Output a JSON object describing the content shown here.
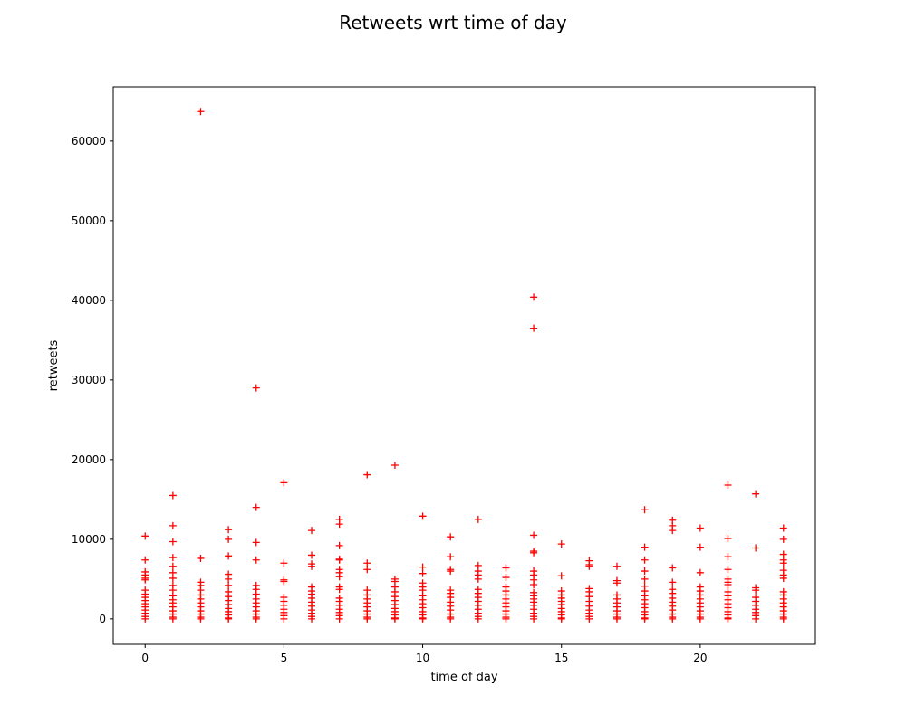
{
  "chart_data": {
    "type": "scatter",
    "title": "Retweets wrt time of day",
    "xlabel": "time of day",
    "ylabel": "retweets",
    "xlim": [
      -1.15,
      24.15
    ],
    "ylim": [
      -3200,
      66800
    ],
    "xticks": [
      0,
      5,
      10,
      15,
      20
    ],
    "yticks": [
      0,
      10000,
      20000,
      30000,
      40000,
      50000,
      60000
    ],
    "grid": false,
    "marker": "+",
    "color": "#ff0000",
    "series": [
      {
        "points": [
          [
            0,
            10400
          ],
          [
            0,
            7400
          ],
          [
            0,
            5900
          ],
          [
            0,
            5500
          ],
          [
            0,
            5100
          ],
          [
            0,
            4900
          ],
          [
            0,
            3600
          ],
          [
            0,
            3100
          ],
          [
            0,
            2700
          ],
          [
            0,
            2300
          ],
          [
            0,
            1900
          ],
          [
            0,
            1500
          ],
          [
            0,
            1100
          ],
          [
            0,
            700
          ],
          [
            0,
            300
          ],
          [
            0,
            0
          ],
          [
            1,
            15500
          ],
          [
            1,
            11700
          ],
          [
            1,
            9700
          ],
          [
            1,
            7700
          ],
          [
            1,
            6600
          ],
          [
            1,
            5800
          ],
          [
            1,
            5100
          ],
          [
            1,
            4200
          ],
          [
            1,
            3600
          ],
          [
            1,
            2900
          ],
          [
            1,
            2400
          ],
          [
            1,
            2000
          ],
          [
            1,
            1500
          ],
          [
            1,
            1000
          ],
          [
            1,
            600
          ],
          [
            1,
            200
          ],
          [
            1,
            0
          ],
          [
            2,
            63700
          ],
          [
            2,
            7600
          ],
          [
            2,
            4600
          ],
          [
            2,
            4200
          ],
          [
            2,
            3600
          ],
          [
            2,
            3000
          ],
          [
            2,
            2500
          ],
          [
            2,
            2000
          ],
          [
            2,
            1500
          ],
          [
            2,
            1000
          ],
          [
            2,
            600
          ],
          [
            2,
            200
          ],
          [
            2,
            0
          ],
          [
            3,
            11200
          ],
          [
            3,
            10000
          ],
          [
            3,
            7900
          ],
          [
            3,
            5600
          ],
          [
            3,
            5000
          ],
          [
            3,
            4200
          ],
          [
            3,
            3400
          ],
          [
            3,
            2800
          ],
          [
            3,
            2300
          ],
          [
            3,
            1800
          ],
          [
            3,
            1300
          ],
          [
            3,
            900
          ],
          [
            3,
            500
          ],
          [
            3,
            100
          ],
          [
            3,
            0
          ],
          [
            4,
            29000
          ],
          [
            4,
            14000
          ],
          [
            4,
            9600
          ],
          [
            4,
            7400
          ],
          [
            4,
            4200
          ],
          [
            4,
            3700
          ],
          [
            4,
            3100
          ],
          [
            4,
            2500
          ],
          [
            4,
            2000
          ],
          [
            4,
            1500
          ],
          [
            4,
            1000
          ],
          [
            4,
            600
          ],
          [
            4,
            200
          ],
          [
            4,
            0
          ],
          [
            5,
            17100
          ],
          [
            5,
            7000
          ],
          [
            5,
            4900
          ],
          [
            5,
            4700
          ],
          [
            5,
            2700
          ],
          [
            5,
            2200
          ],
          [
            5,
            1700
          ],
          [
            5,
            1200
          ],
          [
            5,
            800
          ],
          [
            5,
            400
          ],
          [
            5,
            0
          ],
          [
            6,
            11100
          ],
          [
            6,
            8000
          ],
          [
            6,
            6900
          ],
          [
            6,
            6600
          ],
          [
            6,
            4000
          ],
          [
            6,
            3500
          ],
          [
            6,
            3100
          ],
          [
            6,
            2600
          ],
          [
            6,
            2100
          ],
          [
            6,
            1600
          ],
          [
            6,
            1100
          ],
          [
            6,
            700
          ],
          [
            6,
            300
          ],
          [
            6,
            0
          ],
          [
            7,
            12500
          ],
          [
            7,
            11900
          ],
          [
            7,
            9200
          ],
          [
            7,
            7500
          ],
          [
            7,
            7400
          ],
          [
            7,
            6200
          ],
          [
            7,
            5800
          ],
          [
            7,
            5300
          ],
          [
            7,
            4000
          ],
          [
            7,
            3700
          ],
          [
            7,
            2600
          ],
          [
            7,
            2200
          ],
          [
            7,
            1700
          ],
          [
            7,
            1200
          ],
          [
            7,
            800
          ],
          [
            7,
            400
          ],
          [
            7,
            0
          ],
          [
            8,
            18100
          ],
          [
            8,
            7000
          ],
          [
            8,
            6200
          ],
          [
            8,
            3600
          ],
          [
            8,
            3000
          ],
          [
            8,
            2500
          ],
          [
            8,
            2000
          ],
          [
            8,
            1500
          ],
          [
            8,
            1000
          ],
          [
            8,
            600
          ],
          [
            8,
            200
          ],
          [
            8,
            0
          ],
          [
            9,
            19300
          ],
          [
            9,
            5000
          ],
          [
            9,
            4700
          ],
          [
            9,
            4000
          ],
          [
            9,
            3400
          ],
          [
            9,
            2800
          ],
          [
            9,
            2300
          ],
          [
            9,
            1800
          ],
          [
            9,
            1300
          ],
          [
            9,
            900
          ],
          [
            9,
            500
          ],
          [
            9,
            100
          ],
          [
            9,
            0
          ],
          [
            10,
            12900
          ],
          [
            10,
            6500
          ],
          [
            10,
            5700
          ],
          [
            10,
            4500
          ],
          [
            10,
            4000
          ],
          [
            10,
            3600
          ],
          [
            10,
            2900
          ],
          [
            10,
            2400
          ],
          [
            10,
            1900
          ],
          [
            10,
            1400
          ],
          [
            10,
            900
          ],
          [
            10,
            500
          ],
          [
            10,
            100
          ],
          [
            10,
            0
          ],
          [
            11,
            10300
          ],
          [
            11,
            7800
          ],
          [
            11,
            6200
          ],
          [
            11,
            6000
          ],
          [
            11,
            3600
          ],
          [
            11,
            3200
          ],
          [
            11,
            2700
          ],
          [
            11,
            2100
          ],
          [
            11,
            1600
          ],
          [
            11,
            1100
          ],
          [
            11,
            600
          ],
          [
            11,
            200
          ],
          [
            11,
            0
          ],
          [
            12,
            12500
          ],
          [
            12,
            6700
          ],
          [
            12,
            6000
          ],
          [
            12,
            5500
          ],
          [
            12,
            5000
          ],
          [
            12,
            3700
          ],
          [
            12,
            3200
          ],
          [
            12,
            2700
          ],
          [
            12,
            2200
          ],
          [
            12,
            1700
          ],
          [
            12,
            1200
          ],
          [
            12,
            700
          ],
          [
            12,
            300
          ],
          [
            12,
            0
          ],
          [
            13,
            6400
          ],
          [
            13,
            5200
          ],
          [
            13,
            4000
          ],
          [
            13,
            3500
          ],
          [
            13,
            3000
          ],
          [
            13,
            2500
          ],
          [
            13,
            2000
          ],
          [
            13,
            1500
          ],
          [
            13,
            1000
          ],
          [
            13,
            600
          ],
          [
            13,
            200
          ],
          [
            13,
            0
          ],
          [
            14,
            40400
          ],
          [
            14,
            36500
          ],
          [
            14,
            10500
          ],
          [
            14,
            8500
          ],
          [
            14,
            8300
          ],
          [
            14,
            6000
          ],
          [
            14,
            5500
          ],
          [
            14,
            4900
          ],
          [
            14,
            4300
          ],
          [
            14,
            3300
          ],
          [
            14,
            2900
          ],
          [
            14,
            2500
          ],
          [
            14,
            2100
          ],
          [
            14,
            1700
          ],
          [
            14,
            1200
          ],
          [
            14,
            700
          ],
          [
            14,
            300
          ],
          [
            14,
            0
          ],
          [
            15,
            9400
          ],
          [
            15,
            5400
          ],
          [
            15,
            3500
          ],
          [
            15,
            3000
          ],
          [
            15,
            2600
          ],
          [
            15,
            2200
          ],
          [
            15,
            1800
          ],
          [
            15,
            1300
          ],
          [
            15,
            900
          ],
          [
            15,
            500
          ],
          [
            15,
            100
          ],
          [
            15,
            0
          ],
          [
            16,
            7300
          ],
          [
            16,
            6800
          ],
          [
            16,
            6600
          ],
          [
            16,
            3800
          ],
          [
            16,
            3400
          ],
          [
            16,
            2800
          ],
          [
            16,
            2200
          ],
          [
            16,
            1600
          ],
          [
            16,
            1100
          ],
          [
            16,
            700
          ],
          [
            16,
            300
          ],
          [
            16,
            0
          ],
          [
            17,
            6600
          ],
          [
            17,
            4800
          ],
          [
            17,
            4500
          ],
          [
            17,
            3000
          ],
          [
            17,
            2500
          ],
          [
            17,
            2000
          ],
          [
            17,
            1500
          ],
          [
            17,
            1000
          ],
          [
            17,
            600
          ],
          [
            17,
            200
          ],
          [
            17,
            0
          ],
          [
            18,
            13700
          ],
          [
            18,
            9000
          ],
          [
            18,
            7400
          ],
          [
            18,
            6000
          ],
          [
            18,
            5000
          ],
          [
            18,
            4100
          ],
          [
            18,
            3500
          ],
          [
            18,
            2900
          ],
          [
            18,
            2400
          ],
          [
            18,
            1900
          ],
          [
            18,
            1400
          ],
          [
            18,
            900
          ],
          [
            18,
            500
          ],
          [
            18,
            100
          ],
          [
            18,
            0
          ],
          [
            19,
            12400
          ],
          [
            19,
            11700
          ],
          [
            19,
            11100
          ],
          [
            19,
            6400
          ],
          [
            19,
            4600
          ],
          [
            19,
            3700
          ],
          [
            19,
            3200
          ],
          [
            19,
            2600
          ],
          [
            19,
            2100
          ],
          [
            19,
            1600
          ],
          [
            19,
            1100
          ],
          [
            19,
            600
          ],
          [
            19,
            200
          ],
          [
            19,
            0
          ],
          [
            20,
            11400
          ],
          [
            20,
            9000
          ],
          [
            20,
            5800
          ],
          [
            20,
            4000
          ],
          [
            20,
            3500
          ],
          [
            20,
            3000
          ],
          [
            20,
            2500
          ],
          [
            20,
            2000
          ],
          [
            20,
            1500
          ],
          [
            20,
            1000
          ],
          [
            20,
            600
          ],
          [
            20,
            200
          ],
          [
            20,
            0
          ],
          [
            21,
            16800
          ],
          [
            21,
            10100
          ],
          [
            21,
            7800
          ],
          [
            21,
            6200
          ],
          [
            21,
            5000
          ],
          [
            21,
            4600
          ],
          [
            21,
            4300
          ],
          [
            21,
            3400
          ],
          [
            21,
            2900
          ],
          [
            21,
            2400
          ],
          [
            21,
            1900
          ],
          [
            21,
            1400
          ],
          [
            21,
            900
          ],
          [
            21,
            500
          ],
          [
            21,
            100
          ],
          [
            21,
            0
          ],
          [
            22,
            15700
          ],
          [
            22,
            8900
          ],
          [
            22,
            3900
          ],
          [
            22,
            3600
          ],
          [
            22,
            2700
          ],
          [
            22,
            2200
          ],
          [
            22,
            1700
          ],
          [
            22,
            1200
          ],
          [
            22,
            800
          ],
          [
            22,
            400
          ],
          [
            22,
            0
          ],
          [
            23,
            11400
          ],
          [
            23,
            10000
          ],
          [
            23,
            8100
          ],
          [
            23,
            7400
          ],
          [
            23,
            7000
          ],
          [
            23,
            6100
          ],
          [
            23,
            5500
          ],
          [
            23,
            5100
          ],
          [
            23,
            3400
          ],
          [
            23,
            3000
          ],
          [
            23,
            2500
          ],
          [
            23,
            2000
          ],
          [
            23,
            1500
          ],
          [
            23,
            1000
          ],
          [
            23,
            600
          ],
          [
            23,
            200
          ],
          [
            23,
            0
          ]
        ]
      }
    ]
  }
}
